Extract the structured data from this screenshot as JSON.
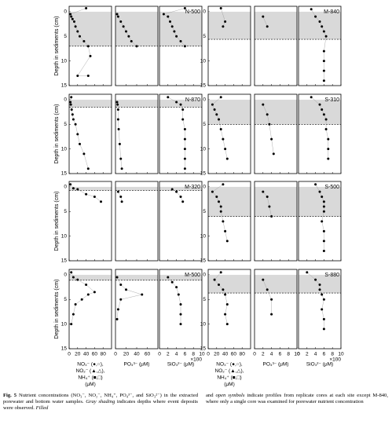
{
  "figure": {
    "depth_label": "Depth in sediments (cm)",
    "depth_lim": [
      -1.1,
      15
    ],
    "depth_ticks": [
      0,
      5,
      10,
      15
    ],
    "blocks": [
      {
        "columns": [
          {
            "xlabel": [
              "NO₃⁻ (●,○),",
              "NO₂⁻ (▲,△),",
              "NH₄⁺ (■,□)",
              "(μM)"
            ],
            "xlim": [
              0,
              100
            ],
            "xticks": [
              0,
              20,
              40,
              60,
              80
            ]
          },
          {
            "xlabel": [
              "PO₄³⁻ (μM)"
            ],
            "xlim": [
              0,
              80
            ],
            "xticks": [
              0,
              20,
              40,
              60
            ]
          },
          {
            "xlabel": [
              "SiO₃²⁻ (μM)"
            ],
            "multiplier": "×100",
            "xlim": [
              0,
              10
            ],
            "xticks": [
              0,
              2,
              4,
              6,
              8,
              10
            ]
          }
        ],
        "panels": [
          {
            "site": "N-500",
            "shade": [
              0,
              7
            ],
            "data": [
              [
                [
                  40,
                  -0.7
                ],
                [
                  3,
                  0.5
                ],
                [
                  5,
                  1
                ],
                [
                  8,
                  1.5
                ],
                [
                  12,
                  2
                ],
                [
                  15,
                  3
                ],
                [
                  20,
                  4
                ],
                [
                  25,
                  5
                ],
                [
                  35,
                  6
                ],
                [
                  45,
                  7
                ],
                [
                  50,
                  9
                ],
                [
                  20,
                  13
                ],
                [
                  45,
                  13
                ]
              ],
              [
                [
                  3,
                  0.5
                ],
                [
                  5,
                  1
                ],
                [
                  10,
                  2
                ],
                [
                  15,
                  3
                ],
                [
                  20,
                  4
                ],
                [
                  25,
                  5
                ],
                [
                  30,
                  6
                ],
                [
                  40,
                  7
                ]
              ],
              [
                [
                  6,
                  -0.7
                ],
                [
                  1,
                  0.5
                ],
                [
                  2,
                  1
                ],
                [
                  2.5,
                  2
                ],
                [
                  3,
                  3
                ],
                [
                  3.5,
                  4
                ],
                [
                  4,
                  5
                ],
                [
                  5,
                  6
                ],
                [
                  6,
                  7
                ]
              ]
            ]
          },
          {
            "site": "N-870",
            "shade": [
              0,
              1.5
            ],
            "data": [
              [
                [
                  5,
                  -0.5
                ],
                [
                  3,
                  0.5
                ],
                [
                  4,
                  1
                ],
                [
                  6,
                  2
                ],
                [
                  8,
                  3
                ],
                [
                  10,
                  4
                ],
                [
                  15,
                  5
                ],
                [
                  20,
                  7
                ],
                [
                  25,
                  9
                ],
                [
                  35,
                  11
                ],
                [
                  45,
                  14
                ]
              ],
              [
                [
                  3,
                  0.5
                ],
                [
                  4,
                  1
                ],
                [
                  5,
                  2
                ],
                [
                  5,
                  4
                ],
                [
                  6,
                  6
                ],
                [
                  8,
                  9
                ],
                [
                  10,
                  12
                ],
                [
                  12,
                  14
                ]
              ],
              [
                [
                  2,
                  -0.5
                ],
                [
                  4,
                  0.5
                ],
                [
                  5,
                  1
                ],
                [
                  5.5,
                  2
                ],
                [
                  5.5,
                  4
                ],
                [
                  6,
                  6
                ],
                [
                  6,
                  8
                ],
                [
                  6,
                  10
                ],
                [
                  6,
                  12
                ],
                [
                  6,
                  14
                ]
              ]
            ]
          },
          {
            "site": "M-320",
            "shade": [
              0,
              0.7
            ],
            "data": [
              [
                [
                  3,
                  -0.5
                ],
                [
                  10,
                  0.3
                ],
                [
                  20,
                  0.5
                ],
                [
                  40,
                  1.5
                ],
                [
                  60,
                  2
                ],
                [
                  75,
                  3
                ]
              ],
              [
                [
                  5,
                  1
                ],
                [
                  10,
                  2
                ],
                [
                  12,
                  3
                ]
              ],
              [
                [
                  3,
                  0.5
                ],
                [
                  4,
                  1
                ],
                [
                  5,
                  2
                ],
                [
                  5.5,
                  3
                ]
              ]
            ]
          },
          {
            "site": "M-500",
            "shade": [
              0,
              1.1
            ],
            "data": [
              [
                [
                  5,
                  -0.5
                ],
                [
                  10,
                  0.5
                ],
                [
                  20,
                  1
                ],
                [
                  40,
                  2
                ],
                [
                  60,
                  3.5
                ],
                [
                  45,
                  4
                ],
                [
                  30,
                  5
                ],
                [
                  15,
                  6
                ],
                [
                  10,
                  8
                ],
                [
                  5,
                  10
                ]
              ],
              [
                [
                  3,
                  0.5
                ],
                [
                  10,
                  2
                ],
                [
                  20,
                  3
                ],
                [
                  50,
                  4
                ],
                [
                  10,
                  5
                ],
                [
                  5,
                  7
                ],
                [
                  3,
                  9
                ]
              ],
              [
                [
                  2,
                  0.5
                ],
                [
                  3,
                  1.5
                ],
                [
                  4,
                  2.5
                ],
                [
                  4.5,
                  4
                ],
                [
                  5,
                  6
                ],
                [
                  5,
                  8
                ],
                [
                  5,
                  10
                ]
              ]
            ]
          }
        ]
      },
      {
        "columns": [
          {
            "xlabel": [
              "NO₃⁻ (●,○),",
              "NO₂⁻ (▲,△),",
              "NH₄⁺ (■,□)",
              "(μM)"
            ],
            "xlim": [
              0,
              100
            ],
            "xticks": [
              0,
              20,
              40,
              60,
              80
            ]
          },
          {
            "xlabel": [
              "PO₄³⁻ (μM)"
            ],
            "xlim": [
              0,
              10
            ],
            "xticks": [
              0,
              2,
              4,
              6,
              8,
              10
            ]
          },
          {
            "xlabel": [
              "SiO₃²⁻ (μM)"
            ],
            "multiplier": "×100",
            "xlim": [
              0,
              10
            ],
            "xticks": [
              0,
              2,
              4,
              6,
              8,
              10
            ]
          }
        ],
        "panels": [
          {
            "site": "M-840",
            "shade": [
              0,
              5.6
            ],
            "data": [
              [
                [
                  30,
                  -0.7
                ],
                [
                  40,
                  2
                ],
                [
                  35,
                  3
                ]
              ],
              [
                [
                  2,
                  1
                ],
                [
                  3,
                  3
                ]
              ],
              [
                [
                  3,
                  -0.5
                ],
                [
                  4,
                  1
                ],
                [
                  5,
                  2
                ],
                [
                  5.5,
                  3
                ],
                [
                  6,
                  4
                ],
                [
                  6.5,
                  5
                ],
                [
                  6,
                  8
                ],
                [
                  6,
                  10
                ],
                [
                  6,
                  12
                ],
                [
                  6,
                  14
                ]
              ]
            ]
          },
          {
            "site": "S-310",
            "shade": [
              0,
              5
            ],
            "data": [
              [
                [
                  30,
                  -0.5
                ],
                [
                  10,
                  1
                ],
                [
                  15,
                  2
                ],
                [
                  20,
                  3
                ],
                [
                  25,
                  4
                ],
                [
                  30,
                  6
                ],
                [
                  35,
                  8
                ],
                [
                  40,
                  10
                ],
                [
                  45,
                  12
                ]
              ],
              [
                [
                  2,
                  1
                ],
                [
                  3,
                  3
                ],
                [
                  3.5,
                  5
                ],
                [
                  4,
                  8
                ],
                [
                  4.5,
                  11
                ]
              ],
              [
                [
                  3,
                  -0.5
                ],
                [
                  5,
                  1
                ],
                [
                  5.5,
                  2
                ],
                [
                  6,
                  3
                ],
                [
                  6.5,
                  4
                ],
                [
                  6.5,
                  6
                ],
                [
                  7,
                  8
                ],
                [
                  7,
                  10
                ],
                [
                  7,
                  12
                ]
              ]
            ]
          },
          {
            "site": "S-500",
            "shade": [
              0,
              6
            ],
            "data": [
              [
                [
                  35,
                  -0.5
                ],
                [
                  10,
                  1
                ],
                [
                  20,
                  2
                ],
                [
                  25,
                  3
                ],
                [
                  30,
                  4
                ],
                [
                  30,
                  5
                ],
                [
                  35,
                  7
                ],
                [
                  40,
                  9
                ],
                [
                  45,
                  11
                ]
              ],
              [
                [
                  2,
                  1
                ],
                [
                  3,
                  2
                ],
                [
                  3.5,
                  4
                ],
                [
                  4,
                  6
                ]
              ],
              [
                [
                  4,
                  -0.5
                ],
                [
                  5,
                  1
                ],
                [
                  5.5,
                  2
                ],
                [
                  6,
                  3
                ],
                [
                  6,
                  4
                ],
                [
                  6,
                  5
                ],
                [
                  5.5,
                  7
                ],
                [
                  6,
                  9
                ],
                [
                  6,
                  11
                ],
                [
                  6,
                  13
                ]
              ]
            ]
          },
          {
            "site": "S-880",
            "shade": [
              0,
              3.7
            ],
            "data": [
              [
                [
                  30,
                  -0.5
                ],
                [
                  15,
                  1
                ],
                [
                  25,
                  2
                ],
                [
                  35,
                  3
                ],
                [
                  40,
                  4
                ],
                [
                  45,
                  6
                ],
                [
                  40,
                  8
                ],
                [
                  45,
                  10
                ]
              ],
              [
                [
                  2,
                  1
                ],
                [
                  3,
                  3
                ],
                [
                  4,
                  5
                ],
                [
                  4,
                  8
                ]
              ],
              [
                [
                  2,
                  -0.5
                ],
                [
                  4,
                  1
                ],
                [
                  5,
                  2
                ],
                [
                  5,
                  3
                ],
                [
                  5.5,
                  4
                ],
                [
                  6,
                  5
                ],
                [
                  5.5,
                  7
                ],
                [
                  6,
                  9
                ],
                [
                  6,
                  11
                ]
              ]
            ]
          }
        ]
      }
    ],
    "caption": {
      "left": [
        {
          "text": "Fig. 5",
          "bold": true
        },
        {
          "text": " Nutrient concentrations (NO₃⁻, NO₂⁻, NH₄⁺, PO₄³⁻, and SiO₃²⁻) in the extracted porewater and bottom water samples. "
        },
        {
          "text": "Gray shading",
          "italic": true
        },
        {
          "text": " indicates depths where event deposits were observed. "
        },
        {
          "text": "Filled",
          "italic": true
        }
      ],
      "right": [
        {
          "text": "and "
        },
        {
          "text": "open symbols",
          "italic": true
        },
        {
          "text": " indicate profiles from replicate cores at each site except M-840, where only a single core was examined for porewater nutrient concentration"
        }
      ]
    }
  }
}
